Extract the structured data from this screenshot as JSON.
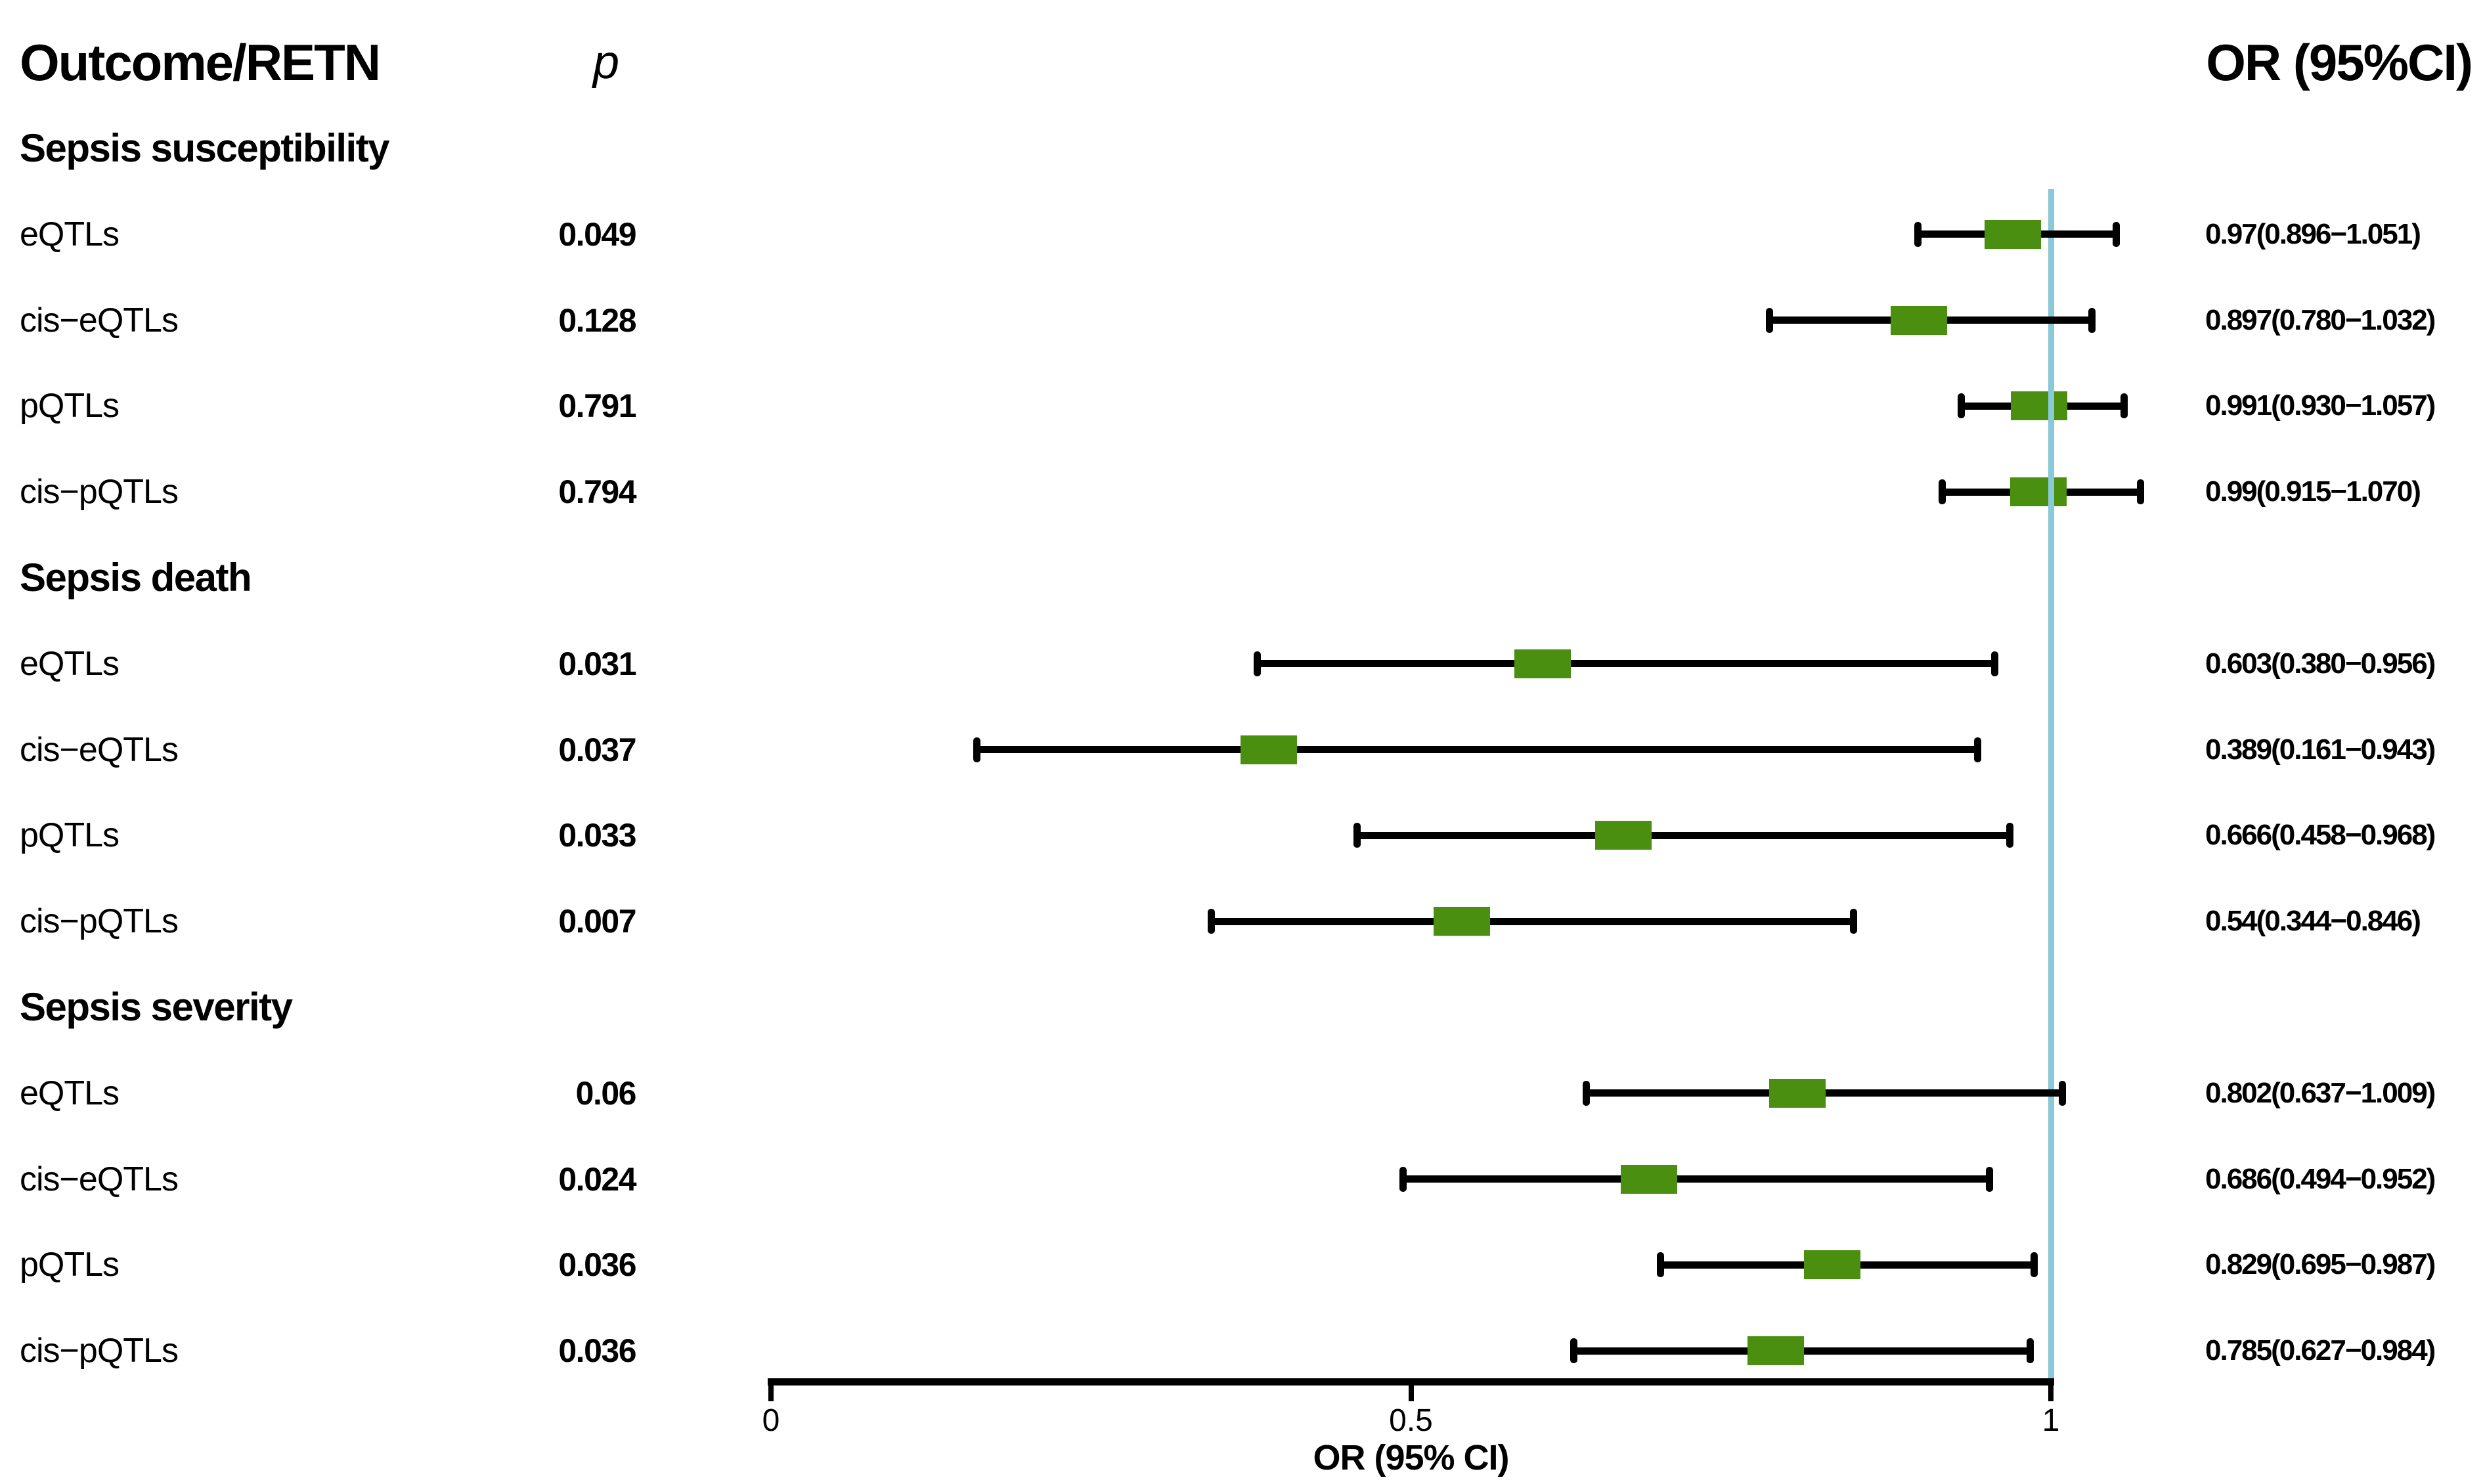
{
  "header": {
    "outcome_label": "Outcome/RETN",
    "p_label": "p",
    "or_label": "OR (95%CI)"
  },
  "chart_data": {
    "type": "scatter",
    "subtype": "forest-plot",
    "x_axis": {
      "title": "OR (95% CI)",
      "ticks": [
        "0",
        "0.5",
        "1"
      ],
      "tick_values": [
        0,
        0.5,
        1
      ],
      "range": [
        0,
        1
      ]
    },
    "reference_line": {
      "value": 1,
      "color": "#8ac9d8"
    },
    "marker": {
      "shape": "square",
      "color": "#4a8f10"
    },
    "ci_color": "#000000",
    "groups": [
      {
        "label": "Sepsis susceptibility",
        "rows": [
          {
            "label": "eQTLs",
            "p": "0.049",
            "or": 0.97,
            "ci_low": 0.896,
            "ci_high": 1.051,
            "or_text": "0.97(0.896−1.051)"
          },
          {
            "label": "cis−eQTLs",
            "p": "0.128",
            "or": 0.897,
            "ci_low": 0.78,
            "ci_high": 1.032,
            "or_text": "0.897(0.780−1.032)"
          },
          {
            "label": "pQTLs",
            "p": "0.791",
            "or": 0.991,
            "ci_low": 0.93,
            "ci_high": 1.057,
            "or_text": "0.991(0.930−1.057)"
          },
          {
            "label": "cis−pQTLs",
            "p": "0.794",
            "or": 0.99,
            "ci_low": 0.915,
            "ci_high": 1.07,
            "or_text": "0.99(0.915−1.070)"
          }
        ]
      },
      {
        "label": "Sepsis death",
        "rows": [
          {
            "label": "eQTLs",
            "p": "0.031",
            "or": 0.603,
            "ci_low": 0.38,
            "ci_high": 0.956,
            "or_text": "0.603(0.380−0.956)"
          },
          {
            "label": "cis−eQTLs",
            "p": "0.037",
            "or": 0.389,
            "ci_low": 0.161,
            "ci_high": 0.943,
            "or_text": "0.389(0.161−0.943)"
          },
          {
            "label": "pQTLs",
            "p": "0.033",
            "or": 0.666,
            "ci_low": 0.458,
            "ci_high": 0.968,
            "or_text": "0.666(0.458−0.968)"
          },
          {
            "label": "cis−pQTLs",
            "p": "0.007",
            "or": 0.54,
            "ci_low": 0.344,
            "ci_high": 0.846,
            "or_text": "0.54(0.344−0.846)"
          }
        ]
      },
      {
        "label": "Sepsis severity",
        "rows": [
          {
            "label": "eQTLs",
            "p": "0.06",
            "or": 0.802,
            "ci_low": 0.637,
            "ci_high": 1.009,
            "or_text": "0.802(0.637−1.009)"
          },
          {
            "label": "cis−eQTLs",
            "p": "0.024",
            "or": 0.686,
            "ci_low": 0.494,
            "ci_high": 0.952,
            "or_text": "0.686(0.494−0.952)"
          },
          {
            "label": "pQTLs",
            "p": "0.036",
            "or": 0.829,
            "ci_low": 0.695,
            "ci_high": 0.987,
            "or_text": "0.829(0.695−0.987)"
          },
          {
            "label": "cis−pQTLs",
            "p": "0.036",
            "or": 0.785,
            "ci_low": 0.627,
            "ci_high": 0.984,
            "or_text": "0.785(0.627−0.984)"
          }
        ]
      }
    ]
  }
}
